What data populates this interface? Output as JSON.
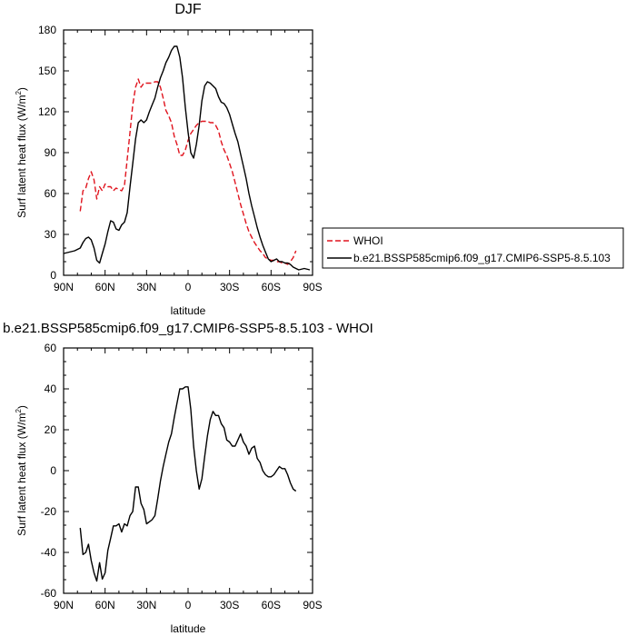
{
  "chart_data": [
    {
      "type": "line",
      "title": "DJF",
      "xlabel": "latitude",
      "ylabel_main": "Surf latent heat flux (W/m",
      "ylabel_sup": "2",
      "ylabel_close": ")",
      "xlim": [
        90,
        -90
      ],
      "ylim": [
        0,
        180
      ],
      "x_ticks": [
        90,
        60,
        30,
        0,
        -30,
        -60,
        -90
      ],
      "x_tick_labels": [
        "90N",
        "60N",
        "30N",
        "0",
        "30S",
        "60S",
        "90S"
      ],
      "y_ticks": [
        0,
        30,
        60,
        90,
        120,
        150,
        180
      ],
      "y_tick_labels": [
        "0",
        "30",
        "60",
        "90",
        "120",
        "150",
        "180"
      ],
      "legend_placement": "right",
      "series": [
        {
          "name": "WHOI",
          "color": "#e0141e",
          "dash": "dashed",
          "x": [
            78,
            76,
            74,
            72,
            70,
            68,
            66,
            64,
            62,
            60,
            58,
            56,
            54,
            52,
            50,
            48,
            46,
            44,
            42,
            40,
            38,
            36,
            34,
            32,
            30,
            28,
            26,
            24,
            22,
            20,
            18,
            16,
            14,
            12,
            10,
            8,
            6,
            4,
            2,
            0,
            -2,
            -4,
            -6,
            -8,
            -10,
            -12,
            -14,
            -16,
            -18,
            -20,
            -22,
            -24,
            -26,
            -28,
            -30,
            -32,
            -34,
            -36,
            -38,
            -40,
            -42,
            -44,
            -46,
            -48,
            -50,
            -52,
            -54,
            -56,
            -58,
            -60,
            -62,
            -64,
            -66,
            -68,
            -70,
            -72,
            -74,
            -76,
            -78
          ],
          "y": [
            47,
            62,
            64,
            71,
            76,
            70,
            56,
            65,
            62,
            67,
            65,
            65,
            62,
            64,
            63,
            62,
            66,
            85,
            105,
            125,
            138,
            144,
            138,
            141,
            141,
            141,
            141,
            142,
            142,
            138,
            130,
            121,
            117,
            112,
            102,
            96,
            88,
            88,
            92,
            99,
            104,
            107,
            110,
            112,
            113,
            113,
            113,
            112,
            112,
            110,
            106,
            98,
            92,
            88,
            82,
            76,
            68,
            60,
            52,
            45,
            38,
            32,
            28,
            24,
            21,
            18,
            16,
            13,
            12,
            11,
            11,
            10,
            10,
            9,
            9,
            8,
            10,
            13,
            18
          ]
        },
        {
          "name": "b.e21.BSSP585cmip6.f09_g17.CMIP6-SSP5-8.5.103",
          "color": "#000000",
          "dash": "solid",
          "x": [
            90,
            86,
            82,
            78,
            76,
            74,
            72,
            70,
            68,
            66,
            64,
            62,
            60,
            58,
            56,
            54,
            52,
            50,
            48,
            46,
            44,
            42,
            40,
            38,
            36,
            34,
            32,
            30,
            28,
            26,
            24,
            22,
            20,
            18,
            16,
            14,
            12,
            10,
            8,
            6,
            4,
            2,
            0,
            -2,
            -4,
            -6,
            -8,
            -10,
            -12,
            -14,
            -16,
            -18,
            -20,
            -22,
            -24,
            -26,
            -28,
            -30,
            -32,
            -34,
            -36,
            -38,
            -40,
            -42,
            -44,
            -46,
            -48,
            -50,
            -52,
            -54,
            -56,
            -58,
            -60,
            -62,
            -64,
            -66,
            -68,
            -70,
            -72,
            -74,
            -76,
            -78,
            -80,
            -84,
            -88
          ],
          "y": [
            16,
            17,
            18,
            20,
            24,
            27,
            28,
            26,
            20,
            11,
            9,
            16,
            23,
            32,
            40,
            39,
            34,
            33,
            37,
            39,
            46,
            65,
            82,
            100,
            112,
            114,
            112,
            114,
            120,
            125,
            130,
            138,
            145,
            150,
            156,
            160,
            165,
            168,
            168,
            160,
            145,
            123,
            105,
            90,
            86,
            96,
            110,
            128,
            139,
            142,
            141,
            139,
            137,
            131,
            127,
            126,
            123,
            118,
            111,
            104,
            98,
            89,
            80,
            71,
            60,
            51,
            43,
            35,
            28,
            22,
            17,
            12,
            10,
            11,
            12,
            10,
            10,
            9,
            9,
            8,
            6,
            5,
            4,
            5,
            4
          ]
        }
      ]
    },
    {
      "type": "line",
      "title": "b.e21.BSSP585cmip6.f09_g17.CMIP6-SSP5-8.5.103 - WHOI",
      "xlabel": "latitude",
      "ylabel_main": "Surf latent heat flux (W/m",
      "ylabel_sup": "2",
      "ylabel_close": ")",
      "xlim": [
        90,
        -90
      ],
      "ylim": [
        -60,
        60
      ],
      "x_ticks": [
        90,
        60,
        30,
        0,
        -30,
        -60,
        -90
      ],
      "x_tick_labels": [
        "90N",
        "60N",
        "30N",
        "0",
        "30S",
        "60S",
        "90S"
      ],
      "y_ticks": [
        -60,
        -40,
        -20,
        0,
        20,
        40,
        60
      ],
      "y_tick_labels": [
        "-60",
        "-40",
        "-20",
        "0",
        "20",
        "40",
        "60"
      ],
      "series": [
        {
          "color": "#000000",
          "dash": "solid",
          "x": [
            78,
            76,
            74,
            72,
            70,
            68,
            66,
            64,
            62,
            60,
            58,
            56,
            54,
            52,
            50,
            48,
            46,
            44,
            42,
            40,
            38,
            36,
            34,
            32,
            30,
            28,
            26,
            24,
            22,
            20,
            18,
            16,
            14,
            12,
            10,
            8,
            6,
            4,
            2,
            0,
            -2,
            -4,
            -6,
            -8,
            -10,
            -12,
            -14,
            -16,
            -18,
            -20,
            -22,
            -24,
            -26,
            -28,
            -30,
            -32,
            -34,
            -36,
            -38,
            -40,
            -42,
            -44,
            -46,
            -48,
            -50,
            -52,
            -54,
            -56,
            -58,
            -60,
            -62,
            -64,
            -66,
            -68,
            -70,
            -72,
            -74,
            -76,
            -78
          ],
          "y": [
            -28,
            -41,
            -40,
            -36,
            -44,
            -50,
            -54,
            -45,
            -53,
            -50,
            -39,
            -33,
            -27,
            -27,
            -26,
            -30,
            -26,
            -27,
            -22,
            -20,
            -8,
            -8,
            -16,
            -19,
            -26,
            -25,
            -24,
            -22,
            -14,
            -5,
            2,
            8,
            14,
            18,
            26,
            33,
            40,
            40,
            41,
            41,
            30,
            12,
            0,
            -9,
            -4,
            7,
            17,
            25,
            29,
            27,
            27,
            23,
            21,
            15,
            14,
            12,
            12,
            15,
            18,
            14,
            12,
            8,
            11,
            12,
            6,
            4,
            0,
            -2,
            -3,
            -3,
            -2,
            0,
            2,
            1,
            1,
            -2,
            -6,
            -9,
            -10
          ]
        }
      ]
    }
  ]
}
